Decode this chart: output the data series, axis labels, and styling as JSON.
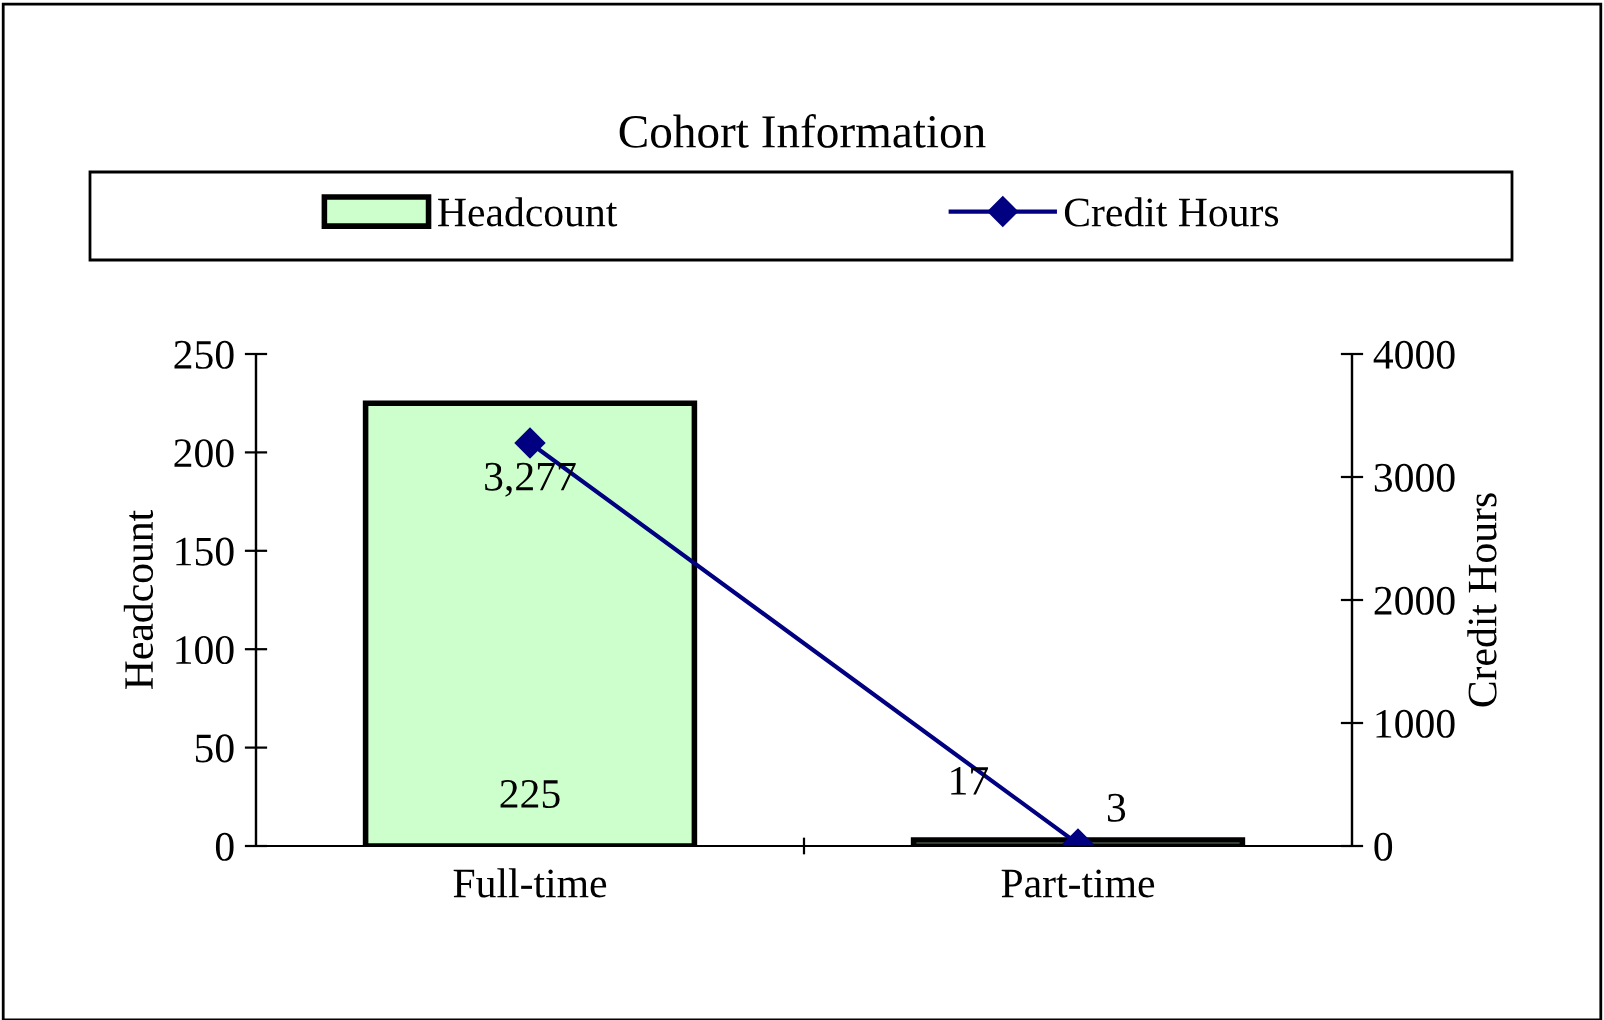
{
  "chart_data": {
    "type": "bar",
    "title": "Cohort Information",
    "ylabel": "Headcount",
    "y2label": "Credit Hours",
    "categories": [
      "Full-time",
      "Part-time"
    ],
    "series": [
      {
        "name": "Headcount",
        "color": "#ccffcc",
        "values": [
          225,
          3
        ],
        "value_labels": [
          "225",
          "3"
        ]
      },
      {
        "name": "Credit Hours",
        "type": "line",
        "axis": "y2",
        "color": "#000080",
        "values": [
          3277,
          17
        ],
        "value_labels": [
          "3,277",
          "17"
        ],
        "marker": "diamond"
      }
    ],
    "ylim": [
      0,
      250
    ],
    "yticks": [
      0,
      50,
      100,
      150,
      200,
      250
    ],
    "y2lim": [
      0,
      4000
    ],
    "y2ticks": [
      0,
      1000,
      2000,
      3000,
      4000
    ],
    "grid": false,
    "legend": "top"
  }
}
